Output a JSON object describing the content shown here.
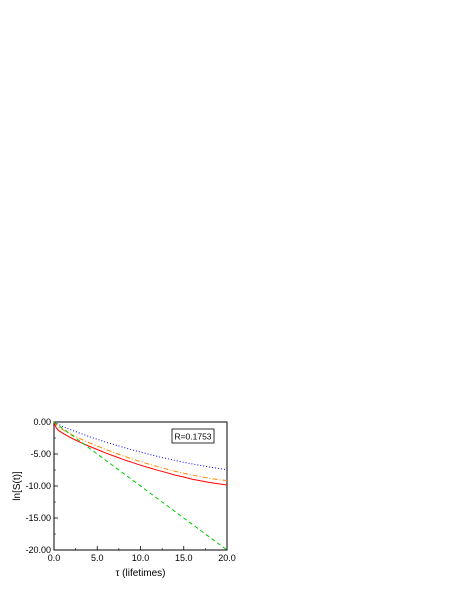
{
  "chart_data": {
    "type": "line",
    "xlabel": "τ (lifetimes)",
    "ylabel": "ln[S(t)]",
    "xlim": [
      0,
      20
    ],
    "ylim": [
      -20,
      0
    ],
    "x_ticks": [
      "0.0",
      "5.0",
      "10.0",
      "15.0",
      "20.0"
    ],
    "y_ticks": [
      "0.00",
      "-5.00",
      "-10.00",
      "-15.00",
      "-20.00"
    ],
    "annotation": "R=0.1753",
    "annotation_position": "top-right",
    "grid": false,
    "series": [
      {
        "color": "#ff0000",
        "style": "solid",
        "x": [
          0,
          0.25,
          0.5,
          1,
          2,
          3,
          4,
          5,
          6,
          7,
          8,
          9,
          10,
          11,
          12,
          13,
          14,
          15,
          16,
          17,
          18,
          19,
          20
        ],
        "y": [
          0,
          -0.9,
          -1.3,
          -1.75,
          -2.5,
          -3.15,
          -3.75,
          -4.3,
          -4.85,
          -5.35,
          -5.85,
          -6.3,
          -6.75,
          -7.15,
          -7.55,
          -7.9,
          -8.3,
          -8.6,
          -8.95,
          -9.2,
          -9.45,
          -9.65,
          -9.85
        ]
      },
      {
        "color": "#ff8800",
        "style": "dash-dot",
        "x": [
          0,
          0.5,
          1,
          2,
          3,
          4,
          5,
          6,
          7,
          8,
          9,
          10,
          11,
          12,
          13,
          14,
          15,
          16,
          17,
          18,
          19,
          20
        ],
        "y": [
          0,
          -0.75,
          -1.2,
          -1.95,
          -2.6,
          -3.2,
          -3.75,
          -4.3,
          -4.8,
          -5.3,
          -5.75,
          -6.2,
          -6.6,
          -7.0,
          -7.35,
          -7.7,
          -8.0,
          -8.3,
          -8.55,
          -8.8,
          -9.0,
          -9.15
        ]
      },
      {
        "color": "#0000ff",
        "style": "dotted",
        "x": [
          0,
          1,
          2,
          3,
          4,
          5,
          6,
          7,
          8,
          9,
          10,
          11,
          12,
          13,
          14,
          15,
          16,
          17,
          18,
          19,
          20
        ],
        "y": [
          0,
          -0.7,
          -1.25,
          -1.75,
          -2.25,
          -2.7,
          -3.15,
          -3.55,
          -3.95,
          -4.35,
          -4.7,
          -5.05,
          -5.4,
          -5.7,
          -6.0,
          -6.3,
          -6.55,
          -6.8,
          -7.05,
          -7.25,
          -7.45
        ]
      },
      {
        "color": "#00cc00",
        "style": "dashed",
        "x": [
          0,
          20
        ],
        "y": [
          0,
          -20
        ]
      }
    ]
  }
}
